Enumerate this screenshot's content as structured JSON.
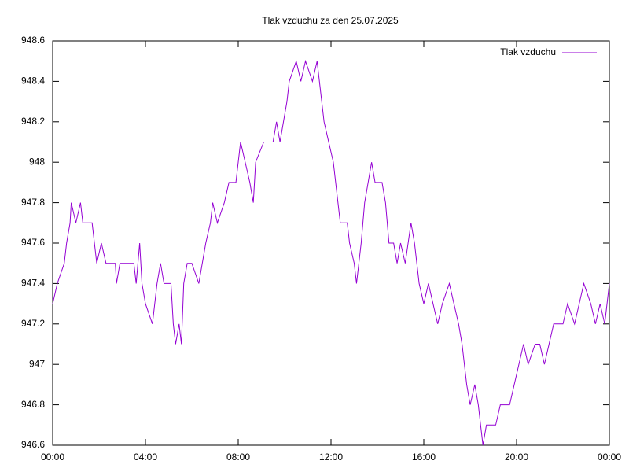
{
  "chart_data": {
    "type": "line",
    "title": "Tlak vzduchu za den 25.07.2025",
    "x": [
      0,
      0.2,
      0.5,
      0.6,
      0.75,
      0.8,
      1.0,
      1.2,
      1.3,
      1.7,
      1.8,
      1.9,
      2.1,
      2.3,
      2.7,
      2.75,
      2.9,
      3.5,
      3.6,
      3.75,
      3.85,
      4.0,
      4.3,
      4.5,
      4.65,
      4.8,
      5.1,
      5.2,
      5.3,
      5.45,
      5.55,
      5.65,
      5.8,
      6.0,
      6.3,
      6.6,
      6.8,
      6.9,
      7.1,
      7.4,
      7.6,
      7.9,
      8.1,
      8.3,
      8.5,
      8.65,
      8.75,
      9.1,
      9.5,
      9.65,
      9.8,
      10.1,
      10.2,
      10.5,
      10.7,
      10.9,
      11.2,
      11.4,
      11.5,
      11.7,
      11.9,
      12.1,
      12.3,
      12.4,
      12.7,
      12.8,
      13.0,
      13.1,
      13.3,
      13.45,
      13.6,
      13.75,
      13.9,
      14.2,
      14.35,
      14.5,
      14.7,
      14.85,
      15.0,
      15.2,
      15.45,
      15.6,
      15.8,
      16.0,
      16.2,
      16.4,
      16.6,
      16.8,
      17.1,
      17.3,
      17.5,
      17.65,
      17.75,
      17.85,
      18.0,
      18.2,
      18.35,
      18.45,
      18.55,
      18.7,
      19.1,
      19.3,
      19.7,
      19.9,
      20.1,
      20.3,
      20.5,
      20.8,
      21.0,
      21.2,
      21.4,
      21.6,
      22.0,
      22.2,
      22.5,
      22.7,
      22.9,
      23.2,
      23.4,
      23.6,
      23.8,
      23.9,
      24.0
    ],
    "series": [
      {
        "name": "Tlak vzduchu",
        "color": "#9400d3",
        "values": [
          947.3,
          947.4,
          947.5,
          947.6,
          947.7,
          947.8,
          947.7,
          947.8,
          947.7,
          947.7,
          947.6,
          947.5,
          947.6,
          947.5,
          947.5,
          947.4,
          947.5,
          947.5,
          947.4,
          947.6,
          947.4,
          947.3,
          947.2,
          947.4,
          947.5,
          947.4,
          947.4,
          947.2,
          947.1,
          947.2,
          947.1,
          947.4,
          947.5,
          947.5,
          947.4,
          947.6,
          947.7,
          947.8,
          947.7,
          947.8,
          947.9,
          947.9,
          948.1,
          948.0,
          947.9,
          947.8,
          948.0,
          948.1,
          948.1,
          948.2,
          948.1,
          948.3,
          948.4,
          948.5,
          948.4,
          948.5,
          948.4,
          948.5,
          948.4,
          948.2,
          948.1,
          948.0,
          947.8,
          947.7,
          947.7,
          947.6,
          947.5,
          947.4,
          947.6,
          947.8,
          947.9,
          948.0,
          947.9,
          947.9,
          947.8,
          947.6,
          947.6,
          947.5,
          947.6,
          947.5,
          947.7,
          947.6,
          947.4,
          947.3,
          947.4,
          947.3,
          947.2,
          947.3,
          947.4,
          947.3,
          947.2,
          947.1,
          947.0,
          946.9,
          946.8,
          946.9,
          946.8,
          946.7,
          946.6,
          946.7,
          946.7,
          946.8,
          946.8,
          946.9,
          947.0,
          947.1,
          947.0,
          947.1,
          947.1,
          947.0,
          947.1,
          947.2,
          947.2,
          947.3,
          947.2,
          947.3,
          947.4,
          947.3,
          947.2,
          947.3,
          947.2,
          947.3,
          947.4
        ]
      }
    ],
    "xlim": [
      0,
      24
    ],
    "xticks": [
      {
        "value": 0,
        "label": "00:00"
      },
      {
        "value": 4,
        "label": "04:00"
      },
      {
        "value": 8,
        "label": "08:00"
      },
      {
        "value": 12,
        "label": "12:00"
      },
      {
        "value": 16,
        "label": "16:00"
      },
      {
        "value": 20,
        "label": "20:00"
      },
      {
        "value": 24,
        "label": "00:00"
      }
    ],
    "ylim": [
      946.6,
      948.6
    ],
    "yticks": [
      946.6,
      946.8,
      947,
      947.2,
      947.4,
      947.6,
      947.8,
      948,
      948.2,
      948.4,
      948.6
    ],
    "legend": "top-right"
  }
}
